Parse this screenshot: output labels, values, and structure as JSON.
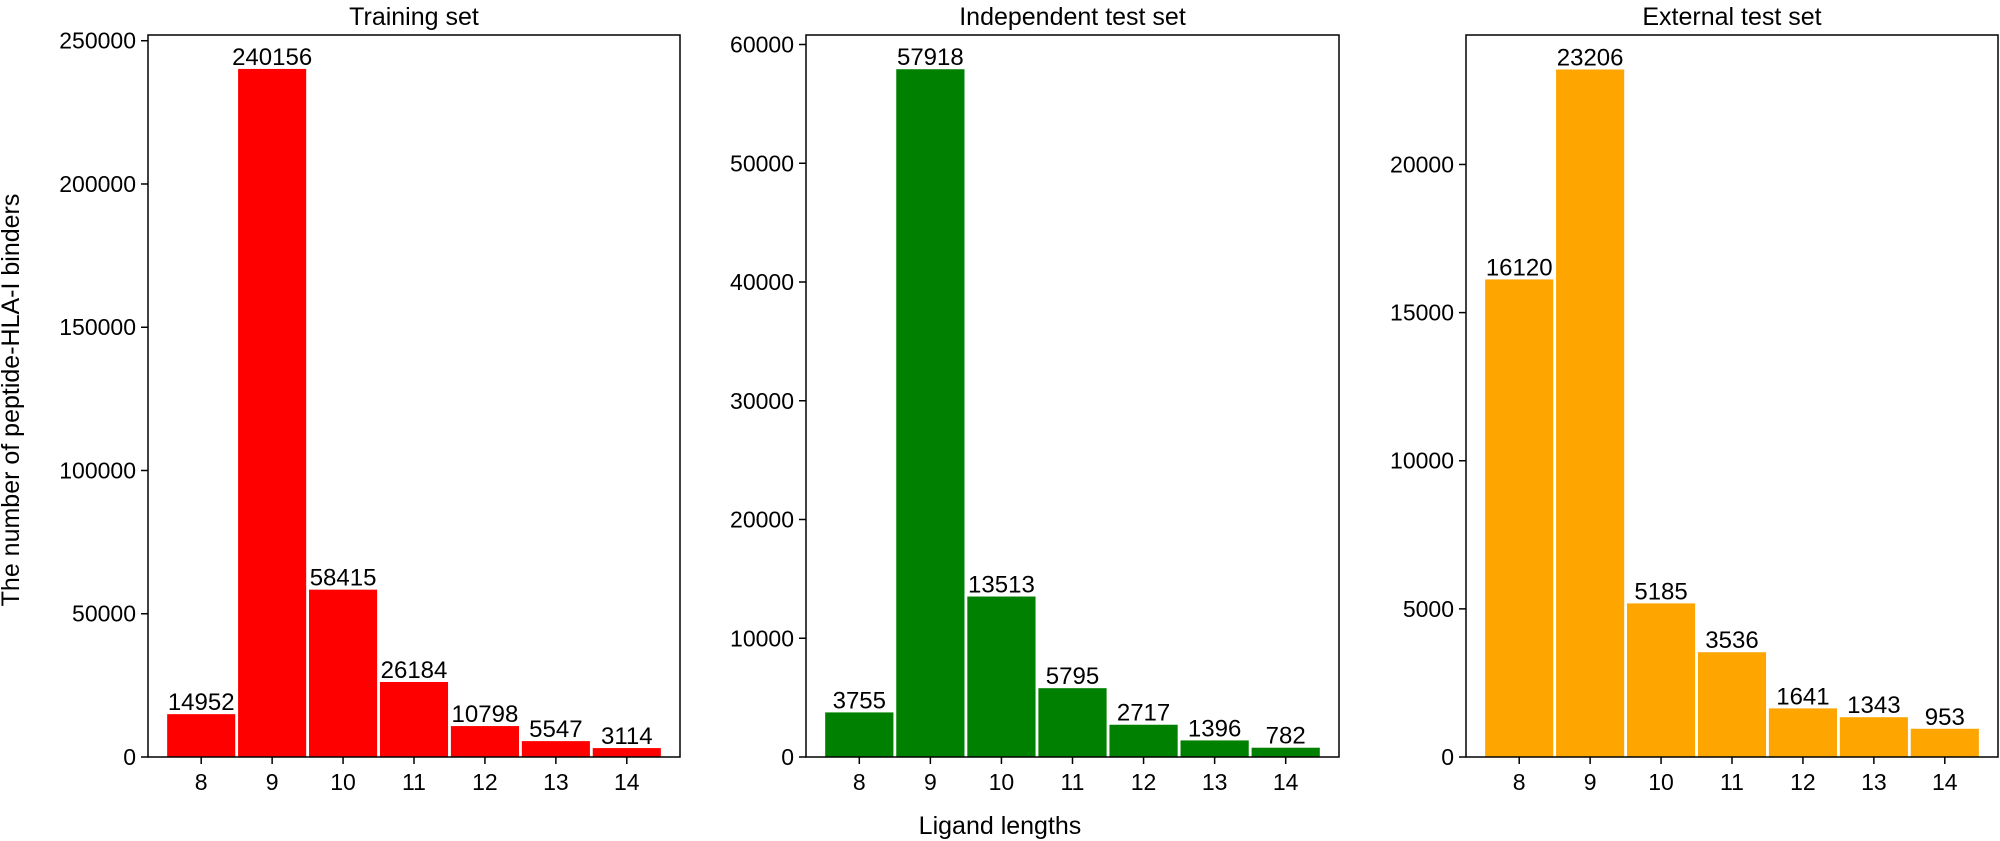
{
  "figure": {
    "xlabel": "Ligand lengths",
    "ylabel": "The number of peptide-HLA-I binders"
  },
  "chart_data": [
    {
      "type": "bar",
      "title": "Training set",
      "categories": [
        "8",
        "9",
        "10",
        "11",
        "12",
        "13",
        "14"
      ],
      "values": [
        14952,
        240156,
        58415,
        26184,
        10798,
        5547,
        3114
      ],
      "color": "#ff0000",
      "ylim": [
        0,
        252000
      ],
      "yticks": [
        0,
        50000,
        100000,
        150000,
        200000,
        250000
      ],
      "grid": false
    },
    {
      "type": "bar",
      "title": "Independent test set",
      "categories": [
        "8",
        "9",
        "10",
        "11",
        "12",
        "13",
        "14"
      ],
      "values": [
        3755,
        57918,
        13513,
        5795,
        2717,
        1396,
        782
      ],
      "color": "#008000",
      "ylim": [
        0,
        60800
      ],
      "yticks": [
        0,
        10000,
        20000,
        30000,
        40000,
        50000,
        60000
      ],
      "grid": false
    },
    {
      "type": "bar",
      "title": "External test set",
      "categories": [
        "8",
        "9",
        "10",
        "11",
        "12",
        "13",
        "14"
      ],
      "values": [
        16120,
        23206,
        5185,
        3536,
        1641,
        1343,
        953
      ],
      "color": "#ffa500",
      "ylim": [
        0,
        24370
      ],
      "yticks": [
        0,
        5000,
        10000,
        15000,
        20000
      ],
      "grid": false
    }
  ]
}
